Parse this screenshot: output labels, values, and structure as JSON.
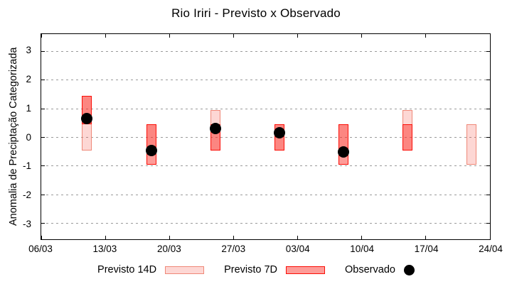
{
  "title": "Rio Iriri - Previsto x Observado",
  "y_axis": {
    "label": "Anomalia de Preciptação Categorizada",
    "tick_values": [
      3,
      2,
      1,
      0,
      -1,
      -2,
      -3
    ]
  },
  "x_axis": {
    "ticks": [
      {
        "label": "06/03",
        "day": 0
      },
      {
        "label": "13/03",
        "day": 7
      },
      {
        "label": "20/03",
        "day": 14
      },
      {
        "label": "27/03",
        "day": 21
      },
      {
        "label": "03/04",
        "day": 28
      },
      {
        "label": "10/04",
        "day": 35
      },
      {
        "label": "17/04",
        "day": 42
      },
      {
        "label": "24/04",
        "day": 49
      }
    ],
    "span_days": 49
  },
  "legend": {
    "items": [
      {
        "label": "Previsto 14D",
        "swatch": "bar14"
      },
      {
        "label": "Previsto 7D",
        "swatch": "bar7"
      },
      {
        "label": "Observado",
        "swatch": "dot"
      }
    ]
  },
  "colors": {
    "bar14_fill": "rgba(247,72,57,0.22)",
    "bar14_border": "#ef8878",
    "bar7_fill": "rgba(250,40,30,0.46)",
    "bar7_border": "#fb0e07",
    "observed": "#000000",
    "grid": "#9a9a9a"
  },
  "groups": [
    {
      "date": "11/03",
      "day": 5,
      "bar14": [
        -0.45,
        1.45
      ],
      "bar7": [
        0.45,
        1.45
      ],
      "observed": 0.65
    },
    {
      "date": "18/03",
      "day": 12,
      "bar14": [
        -0.45,
        0.45
      ],
      "bar7": [
        -0.95,
        0.45
      ],
      "observed": -0.45
    },
    {
      "date": "25/03",
      "day": 19,
      "bar14": [
        -0.45,
        0.95
      ],
      "bar7": [
        -0.45,
        0.45
      ],
      "observed": 0.3
    },
    {
      "date": "01/04",
      "day": 26,
      "bar14": [
        -0.45,
        0.45
      ],
      "bar7": [
        -0.45,
        0.45
      ],
      "observed": 0.15
    },
    {
      "date": "08/04",
      "day": 33,
      "bar14": [
        -0.45,
        0.45
      ],
      "bar7": [
        -0.95,
        0.45
      ],
      "observed": -0.5
    },
    {
      "date": "15/04",
      "day": 40,
      "bar14": [
        -0.45,
        0.95
      ],
      "bar7": [
        -0.45,
        0.45
      ],
      "observed": null
    },
    {
      "date": "22/04",
      "day": 47,
      "bar14": [
        -0.95,
        0.45
      ],
      "bar7": null,
      "observed": null
    }
  ],
  "chart_data": {
    "type": "bar",
    "subtype": "range-bars-with-scatter-overlay",
    "title": "Rio Iriri - Previsto x Observado",
    "xlabel": "",
    "ylabel": "Anomalia de Preciptação Categorizada",
    "ylim": [
      -3.5,
      3.5
    ],
    "yticks": [
      -3,
      -2,
      -1,
      0,
      1,
      2,
      3
    ],
    "x_tick_labels": [
      "06/03",
      "13/03",
      "20/03",
      "27/03",
      "03/04",
      "10/04",
      "17/04",
      "24/04"
    ],
    "categories": [
      "11/03",
      "18/03",
      "25/03",
      "01/04",
      "08/04",
      "15/04",
      "22/04"
    ],
    "series": [
      {
        "name": "Previsto 14D",
        "type": "range_bar",
        "ranges": [
          [
            -0.45,
            1.45
          ],
          [
            -0.45,
            0.45
          ],
          [
            -0.45,
            0.95
          ],
          [
            -0.45,
            0.45
          ],
          [
            -0.45,
            0.45
          ],
          [
            -0.45,
            0.95
          ],
          [
            -0.95,
            0.45
          ]
        ]
      },
      {
        "name": "Previsto 7D",
        "type": "range_bar",
        "ranges": [
          [
            0.45,
            1.45
          ],
          [
            -0.95,
            0.45
          ],
          [
            -0.45,
            0.45
          ],
          [
            -0.45,
            0.45
          ],
          [
            -0.95,
            0.45
          ],
          [
            -0.45,
            0.45
          ],
          null
        ]
      },
      {
        "name": "Observado",
        "type": "scatter",
        "values": [
          0.65,
          -0.45,
          0.3,
          0.15,
          -0.5,
          null,
          null
        ]
      }
    ],
    "grid": "horizontal dotted lines at integer y values",
    "legend_position": "bottom"
  }
}
